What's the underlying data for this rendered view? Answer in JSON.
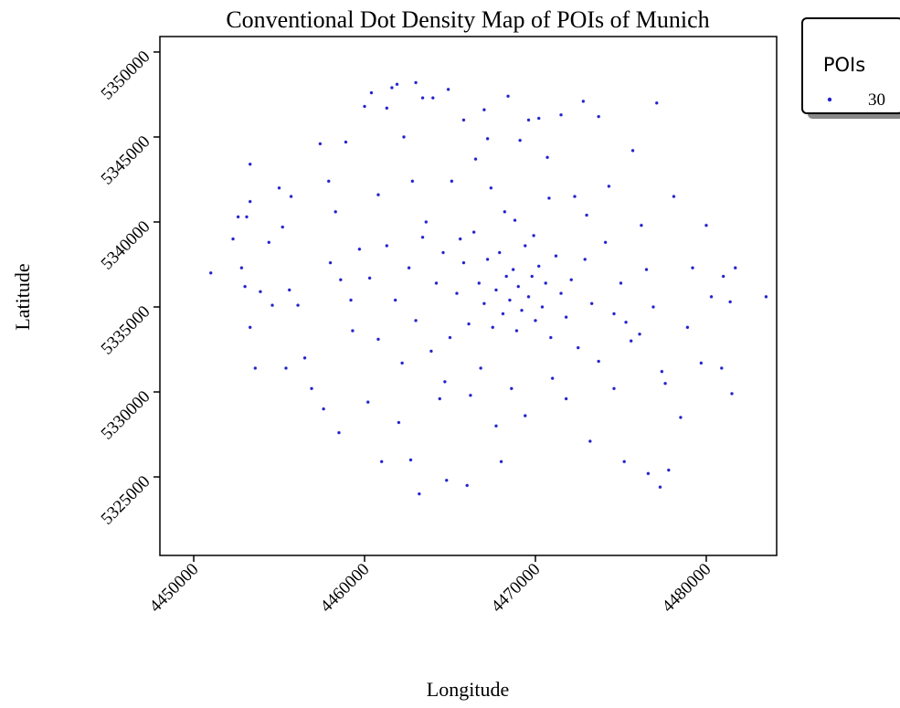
{
  "chart_data": {
    "type": "scatter",
    "title": "Conventional Dot Density Map of POIs of Munich",
    "xlabel": "Longitude",
    "ylabel": "Latitude",
    "color": "#2222cc",
    "legend_title": "POIs",
    "legend_labels": [
      30
    ],
    "legend": "outside upper right",
    "xlim": [
      4448020,
      4484120
    ],
    "ylim": [
      5320380,
      5350910
    ],
    "xticks": [
      4450000,
      4460000,
      4470000,
      4480000
    ],
    "yticks": [
      5325000,
      5330000,
      5335000,
      5340000,
      5345000,
      5350000
    ],
    "x": [
      4451000,
      4452300,
      4452600,
      4453100,
      4453300,
      4453300,
      4452800,
      4453000,
      4453300,
      4453600,
      4453900,
      4454400,
      4454600,
      4455000,
      4455400,
      4455200,
      4455600,
      4455700,
      4456100,
      4456500,
      4456900,
      4457400,
      4457600,
      4457900,
      4458300,
      4458500,
      4458900,
      4459300,
      4460200,
      4460000,
      4460400,
      4460800,
      4461000,
      4461300,
      4461600,
      4461900,
      4462000,
      4462300,
      4462700,
      4463000,
      4463200,
      4463400,
      4463600,
      4464000,
      4464400,
      4464800,
      4464900,
      4465100,
      4465800,
      4466000,
      4466200,
      4466500,
      4467000,
      4467200,
      4467700,
      4468000,
      4468400,
      4468800,
      4469100,
      4469400,
      4469600,
      4470200,
      4470700,
      4471500,
      4471800,
      4472300,
      4472800,
      4473200,
      4473700,
      4474300,
      4474600,
      4475200,
      4475700,
      4476100,
      4476600,
      4477100,
      4477600,
      4477800,
      4478100,
      4478500,
      4478900,
      4479200,
      4479700,
      4480000,
      4480300,
      4481000,
      4481400,
      4481700,
      4480900,
      4481500,
      4483500,
      4477300,
      4476500,
      4475300,
      4458000,
      4458600,
      4459200,
      4459700,
      4460300,
      4460800,
      4461300,
      4461800,
      4462200,
      4462600,
      4463000,
      4463400,
      4463900,
      4464200,
      4464600,
      4465000,
      4465400,
      4465800,
      4466100,
      4466400,
      4466700,
      4467000,
      4467200,
      4467500,
      4467700,
      4467900,
      4468100,
      4468300,
      4468500,
      4468700,
      4468900,
      4469000,
      4469200,
      4469400,
      4469600,
      4469800,
      4470000,
      4470200,
      4470400,
      4470600,
      4470900,
      4471200,
      4471500,
      4471800,
      4472100,
      4472500,
      4472900,
      4473300,
      4473700,
      4474100,
      4474600,
      4475000,
      4475600,
      4476200,
      4476900,
      4477400,
      4468200,
      4470800,
      4466800,
      4468600,
      4471000,
      4464700,
      4473000,
      4462800,
      4467400,
      4469900,
      4465600
    ],
    "y": [
      5337000,
      5339000,
      5340300,
      5340300,
      5341200,
      5343400,
      5337300,
      5336200,
      5333800,
      5331400,
      5335900,
      5338800,
      5335100,
      5342000,
      5331400,
      5339700,
      5336000,
      5341500,
      5335100,
      5332000,
      5330200,
      5344600,
      5329000,
      5342400,
      5340600,
      5327600,
      5344700,
      5333600,
      5329400,
      5346800,
      5347600,
      5341600,
      5325900,
      5346700,
      5347900,
      5348100,
      5328200,
      5345000,
      5326000,
      5348200,
      5324000,
      5347300,
      5340000,
      5347300,
      5329600,
      5324800,
      5347800,
      5342400,
      5346000,
      5324500,
      5329800,
      5343700,
      5346600,
      5344900,
      5328000,
      5325900,
      5347400,
      5340100,
      5344800,
      5328600,
      5346000,
      5346100,
      5343800,
      5346300,
      5329600,
      5341500,
      5347100,
      5327100,
      5346200,
      5342100,
      5330200,
      5325900,
      5344200,
      5333400,
      5325200,
      5347000,
      5330500,
      5325400,
      5341500,
      5328500,
      5333800,
      5337300,
      5331700,
      5339800,
      5335600,
      5336800,
      5335300,
      5337300,
      5331400,
      5329900,
      5335600,
      5324400,
      5337200,
      5334100,
      5337600,
      5336600,
      5335400,
      5338400,
      5336700,
      5333100,
      5338600,
      5335400,
      5331700,
      5337300,
      5334200,
      5339100,
      5332400,
      5336400,
      5338200,
      5333200,
      5335800,
      5337600,
      5334000,
      5339400,
      5336400,
      5335200,
      5337800,
      5333800,
      5336000,
      5338200,
      5334600,
      5336800,
      5335400,
      5337200,
      5333600,
      5336200,
      5334800,
      5338600,
      5335600,
      5336800,
      5334200,
      5337400,
      5335000,
      5336400,
      5333200,
      5338000,
      5335800,
      5334400,
      5336600,
      5332600,
      5337800,
      5335200,
      5331800,
      5338800,
      5334600,
      5336400,
      5333000,
      5339800,
      5335000,
      5331200,
      5340600,
      5341400,
      5331400,
      5330200,
      5330800,
      5330600,
      5340400,
      5342400,
      5342000,
      5339200,
      5339000
    ]
  }
}
